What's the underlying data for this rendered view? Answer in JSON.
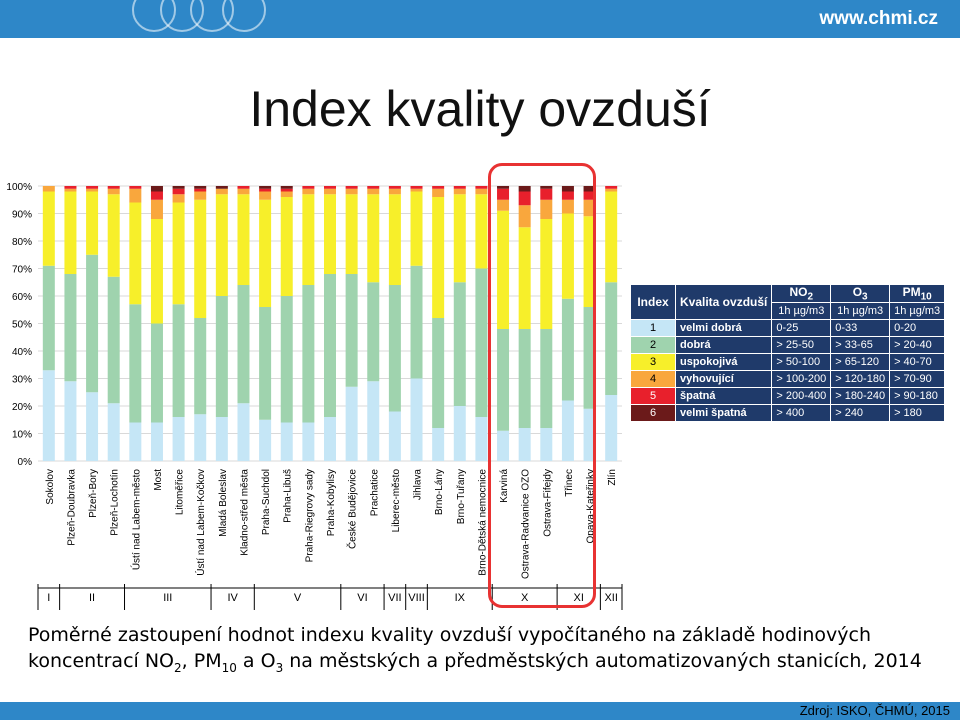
{
  "header": {
    "site": "www.chmi.cz"
  },
  "title": "Index kvality ovzduší",
  "caption": {
    "line1": "Poměrné zastoupení hodnot indexu kvality ovzduší vypočítaného na základě hodinových",
    "line2_a": "koncentrací NO",
    "line2_b": "2",
    "line2_c": ", PM",
    "line2_d": "10",
    "line2_e": " a O",
    "line2_f": "3",
    "line2_g": " na městských a předměstských automatizovaných stanicích, 2014"
  },
  "source": "Zdroj:  ISKO, ČHMÚ, 2015",
  "colors": {
    "i1": "#c5e6f6",
    "i2": "#9fd3ae",
    "i3": "#f7ef2a",
    "i4": "#f9a73d",
    "i5": "#e8202c",
    "i6": "#6b1a1a",
    "highlight": "#e83232"
  },
  "legend": {
    "headers": [
      "Index",
      "Kvalita ovzduší",
      "NO2",
      "O3",
      "PM10"
    ],
    "units": [
      "1h µg/m3",
      "1h µg/m3",
      "1h µg/m3"
    ],
    "rows": [
      {
        "index": "1",
        "label": "velmi dobrá",
        "no2": "0-25",
        "o3": "0-33",
        "pm10": "0-20"
      },
      {
        "index": "2",
        "label": "dobrá",
        "no2": "> 25-50",
        "o3": "> 33-65",
        "pm10": "> 20-40"
      },
      {
        "index": "3",
        "label": "uspokojivá",
        "no2": "> 50-100",
        "o3": "> 65-120",
        "pm10": "> 40-70"
      },
      {
        "index": "4",
        "label": "vyhovující",
        "no2": "> 100-200",
        "o3": "> 120-180",
        "pm10": "> 70-90"
      },
      {
        "index": "5",
        "label": "špatná",
        "no2": "> 200-400",
        "o3": "> 180-240",
        "pm10": "> 90-180"
      },
      {
        "index": "6",
        "label": "velmi špatná",
        "no2": "> 400",
        "o3": "> 240",
        "pm10": "> 180"
      }
    ]
  },
  "chart_data": {
    "type": "bar",
    "stacked": "percent",
    "ylim": [
      0,
      100
    ],
    "yticks": [
      "0%",
      "10%",
      "20%",
      "30%",
      "40%",
      "50%",
      "60%",
      "70%",
      "80%",
      "90%",
      "100%"
    ],
    "categories": [
      "Sokolov",
      "Plzeň-Doubravka",
      "Plzeň-Bory",
      "Plzeň-Lochotín",
      "Ústí nad Labem-město",
      "Most",
      "Litoměřice",
      "Ústí nad Labem-Kočkov",
      "Mladá Boleslav",
      "Kladno-střed města",
      "Praha-Suchdol",
      "Praha-Libuš",
      "Praha-Riegrovy sady",
      "Praha-Kobylisy",
      "České Budějovice",
      "Prachatice",
      "Liberec-město",
      "Jihlava",
      "Brno-Lány",
      "Brno-Tuřany",
      "Brno-Dětská nemocnice",
      "Karviná",
      "Ostrava-Radvanice OZO",
      "Ostrava-Fifejdy",
      "Třinec",
      "Opava-Kateřinky",
      "Zlín"
    ],
    "series": [
      {
        "index": "1",
        "values": [
          33,
          29,
          25,
          21,
          14,
          14,
          16,
          17,
          16,
          21,
          15,
          14,
          14,
          16,
          27,
          29,
          18,
          30,
          12,
          20,
          16,
          11,
          12,
          12,
          22,
          19,
          24
        ]
      },
      {
        "index": "2",
        "values": [
          38,
          39,
          50,
          46,
          43,
          36,
          41,
          35,
          44,
          43,
          41,
          46,
          50,
          52,
          41,
          36,
          46,
          41,
          40,
          45,
          54,
          37,
          36,
          36,
          37,
          37,
          41
        ]
      },
      {
        "index": "3",
        "values": [
          27,
          30,
          23,
          30,
          37,
          38,
          37,
          43,
          37,
          33,
          39,
          36,
          33,
          29,
          29,
          32,
          33,
          27,
          44,
          32,
          27,
          43,
          37,
          40,
          31,
          33,
          33
        ]
      },
      {
        "index": "4",
        "values": [
          2,
          1,
          1,
          2,
          5,
          7,
          3,
          3,
          2,
          2,
          3,
          2,
          2,
          2,
          2,
          2,
          2,
          1,
          3,
          2,
          2,
          4,
          8,
          7,
          5,
          6,
          1
        ]
      },
      {
        "index": "5",
        "values": [
          0,
          1,
          1,
          1,
          1,
          3,
          2,
          1,
          0,
          1,
          1,
          1,
          1,
          1,
          1,
          1,
          1,
          1,
          1,
          1,
          1,
          4,
          5,
          4,
          3,
          3,
          1
        ]
      },
      {
        "index": "6",
        "values": [
          0,
          0,
          0,
          0,
          0,
          2,
          1,
          1,
          1,
          0,
          1,
          1,
          0,
          0,
          0,
          0,
          0,
          0,
          0,
          0,
          0,
          1,
          2,
          1,
          2,
          2,
          0
        ]
      }
    ],
    "groups": [
      {
        "label": "I",
        "count": 1
      },
      {
        "label": "II",
        "count": 3
      },
      {
        "label": "III",
        "count": 4
      },
      {
        "label": "IV",
        "count": 2
      },
      {
        "label": "V",
        "count": 4
      },
      {
        "label": "VI",
        "count": 2
      },
      {
        "label": "VII",
        "count": 1
      },
      {
        "label": "VIII",
        "count": 1
      },
      {
        "label": "IX",
        "count": 3
      },
      {
        "label": "X",
        "count": 3
      },
      {
        "label": "XI",
        "count": 2
      },
      {
        "label": "XII",
        "count": 1
      }
    ]
  }
}
